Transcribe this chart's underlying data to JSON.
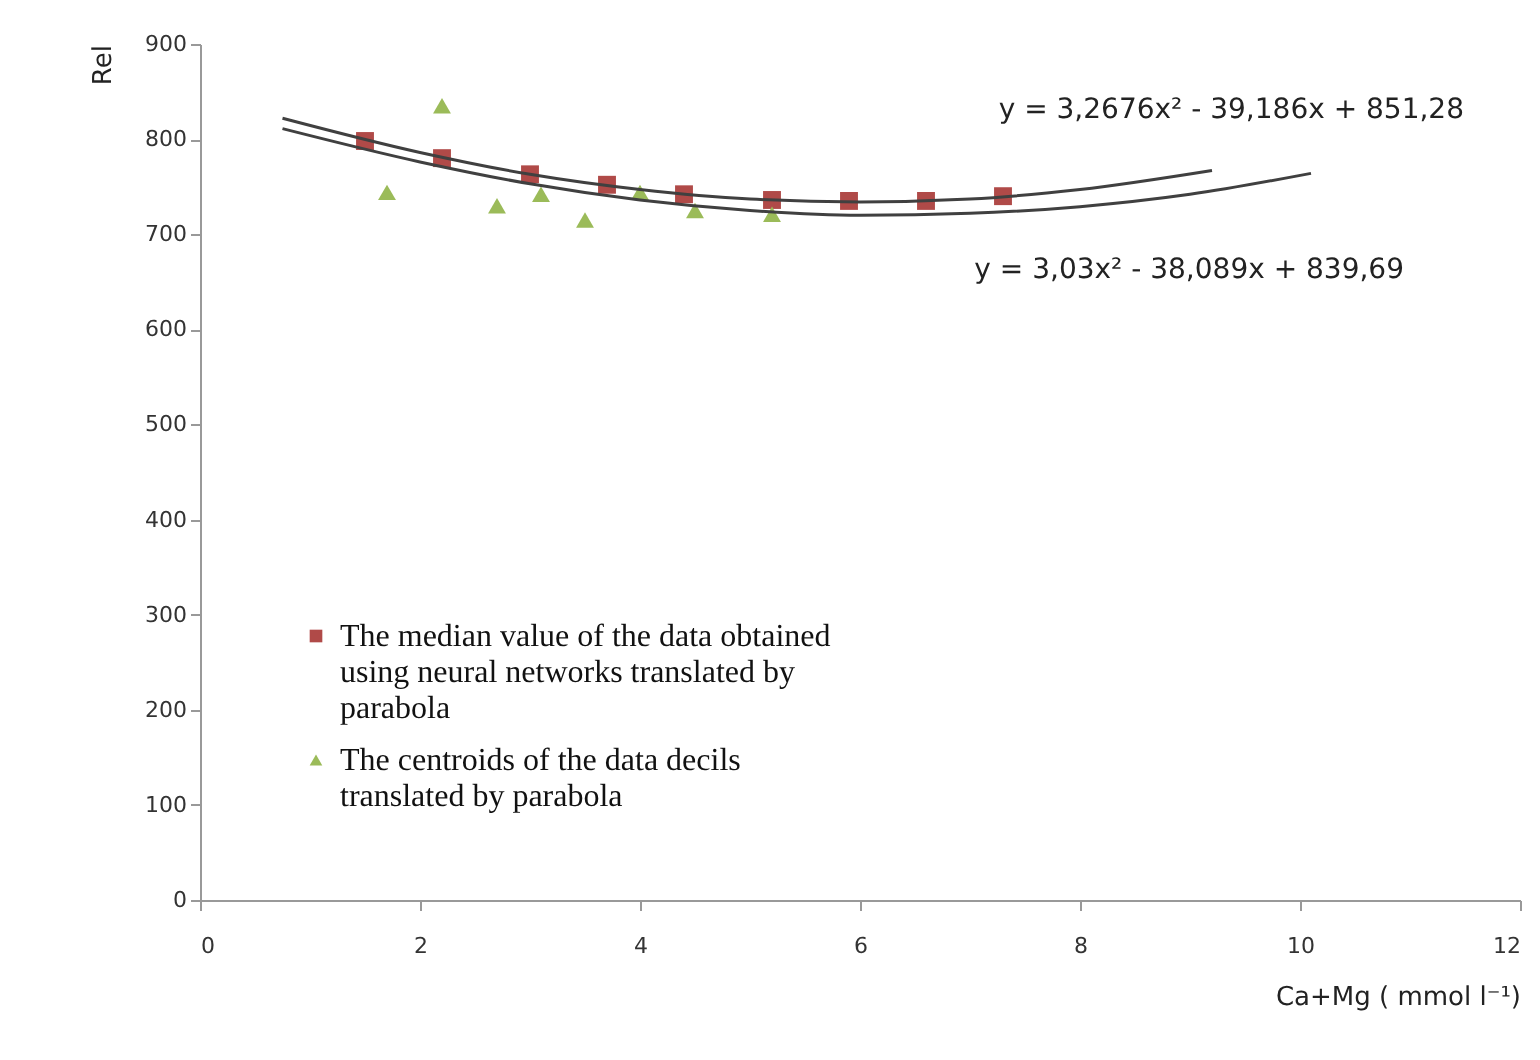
{
  "chart_data": {
    "type": "scatter",
    "xlabel": "Ca+Mg ( mmol  l⁻¹)",
    "ylabel": "Rel",
    "xlim": [
      0,
      12
    ],
    "xticks": [
      0,
      2,
      4,
      6,
      8,
      10,
      12
    ],
    "ylim": [
      0,
      900
    ],
    "yticks": [
      0,
      100,
      200,
      300,
      400,
      500,
      600,
      700,
      800,
      900
    ],
    "grid": false,
    "legend": "bottom left",
    "annotations": [
      "y = 3,2676x² - 39,186x + 851,28",
      "y = 3,03x² - 38,089x + 839,69"
    ],
    "series": [
      {
        "name": "The median value of the data obtained using neural networks translated by parabola",
        "marker": "square",
        "color": "#b04a48",
        "x": [
          1.5,
          2.2,
          3.0,
          3.7,
          4.4,
          5.2,
          5.9,
          6.6,
          7.3
        ],
        "values": [
          798,
          780,
          763,
          752,
          742,
          736,
          735,
          735,
          740
        ]
      },
      {
        "name": "The centroids of the data decils translated by parabola",
        "marker": "triangle",
        "color": "#9bbb59",
        "x": [
          1.7,
          2.2,
          2.7,
          3.1,
          3.5,
          4.0,
          4.5,
          5.2
        ],
        "values": [
          744,
          835,
          730,
          742,
          715,
          744,
          725,
          721
        ]
      },
      {
        "type": "line",
        "marker": "none",
        "color": "#404040",
        "x": [
          0.75,
          2,
          3,
          4,
          5,
          6,
          7,
          8,
          9.2
        ],
        "values": [
          822,
          786,
          763,
          747,
          737,
          734,
          737,
          747,
          767
        ]
      },
      {
        "type": "line",
        "marker": "none",
        "color": "#404040",
        "x": [
          0.75,
          2,
          3,
          4,
          5,
          6,
          7,
          8,
          9,
          10.1
        ],
        "values": [
          811,
          776,
          753,
          736,
          725,
          720,
          722,
          729,
          742,
          764
        ]
      }
    ]
  }
}
